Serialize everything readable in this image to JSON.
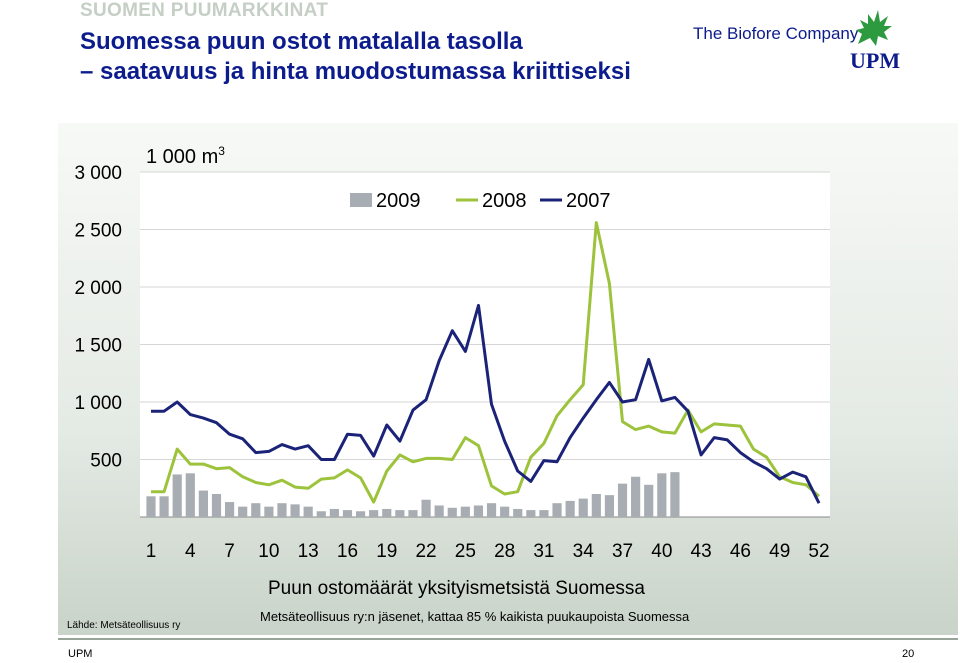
{
  "header": {
    "kicker": "SUOMEN PUUMARKKINAT",
    "title_line1": "Suomessa puun ostot matalalla tasolla",
    "title_line2": "– saatavuus ja hinta muodostumassa kriittiseksi",
    "tagline": "The Biofore Company",
    "brand": "UPM"
  },
  "chart_data": {
    "type": "bar",
    "title": "Puun ostomäärät yksityismetsistä Suomessa",
    "subtitle": "Metsäteollisuus ry:n jäsenet, kattaa 85 % kaikista puukaupoista Suomessa",
    "unit_label": "1 000 m",
    "unit_superscript": "3",
    "ylim": [
      0,
      3000
    ],
    "yticks": [
      500,
      1000,
      1500,
      2000,
      2500,
      3000
    ],
    "ytick_labels": [
      "500",
      "1 000",
      "1 500",
      "2 000",
      "2 500",
      "3 000"
    ],
    "xlim": [
      1,
      52
    ],
    "xticks": [
      1,
      4,
      7,
      10,
      13,
      16,
      19,
      22,
      25,
      28,
      31,
      34,
      37,
      40,
      43,
      46,
      49,
      52
    ],
    "xtick_labels": [
      "1",
      "4",
      "7",
      "10",
      "13",
      "16",
      "19",
      "22",
      "25",
      "28",
      "31",
      "34",
      "37",
      "40",
      "43",
      "46",
      "49",
      "52"
    ],
    "legend": {
      "placement": "top-center"
    },
    "series": [
      {
        "name": "2009",
        "type": "bar",
        "color": "#a7adb2",
        "x": [
          1,
          2,
          3,
          4,
          5,
          6,
          7,
          8,
          9,
          10,
          11,
          12,
          13,
          14,
          15,
          16,
          17,
          18,
          19,
          20,
          21,
          22,
          23,
          24,
          25,
          26,
          27,
          28,
          29,
          30,
          31,
          32,
          33,
          34,
          35,
          36,
          37,
          38,
          39,
          40,
          41
        ],
        "values": [
          180,
          180,
          370,
          380,
          230,
          200,
          130,
          90,
          120,
          90,
          120,
          110,
          90,
          50,
          70,
          60,
          50,
          60,
          70,
          60,
          60,
          150,
          100,
          80,
          90,
          100,
          120,
          90,
          70,
          60,
          60,
          120,
          140,
          160,
          200,
          190,
          290,
          350,
          280,
          380,
          390
        ]
      },
      {
        "name": "2008",
        "type": "line",
        "color": "#9cc33b",
        "x": [
          1,
          2,
          3,
          4,
          5,
          6,
          7,
          8,
          9,
          10,
          11,
          12,
          13,
          14,
          15,
          16,
          17,
          18,
          19,
          20,
          21,
          22,
          23,
          24,
          25,
          26,
          27,
          28,
          29,
          30,
          31,
          32,
          33,
          34,
          35,
          36,
          37,
          38,
          39,
          40,
          41,
          42,
          43,
          44,
          45,
          46,
          47,
          48,
          49,
          50,
          51,
          52
        ],
        "values": [
          220,
          220,
          590,
          460,
          460,
          420,
          430,
          350,
          300,
          280,
          320,
          260,
          250,
          330,
          340,
          410,
          340,
          130,
          400,
          540,
          480,
          510,
          510,
          500,
          690,
          620,
          270,
          200,
          220,
          520,
          640,
          880,
          1020,
          1150,
          2560,
          2030,
          830,
          760,
          790,
          740,
          730,
          930,
          740,
          810,
          800,
          790,
          590,
          520,
          350,
          300,
          280,
          180
        ]
      },
      {
        "name": "2007",
        "type": "line",
        "color": "#1b2379",
        "x": [
          1,
          2,
          3,
          4,
          5,
          6,
          7,
          8,
          9,
          10,
          11,
          12,
          13,
          14,
          15,
          16,
          17,
          18,
          19,
          20,
          21,
          22,
          23,
          24,
          25,
          26,
          27,
          28,
          29,
          30,
          31,
          32,
          33,
          34,
          35,
          36,
          37,
          38,
          39,
          40,
          41,
          42,
          43,
          44,
          45,
          46,
          47,
          48,
          49,
          50,
          51,
          52
        ],
        "values": [
          920,
          920,
          1000,
          890,
          860,
          820,
          720,
          680,
          560,
          570,
          630,
          590,
          620,
          500,
          500,
          720,
          710,
          530,
          800,
          660,
          930,
          1020,
          1360,
          1620,
          1440,
          1840,
          980,
          660,
          400,
          310,
          490,
          480,
          690,
          860,
          1020,
          1170,
          1000,
          1020,
          1370,
          1010,
          1040,
          920,
          540,
          690,
          670,
          560,
          480,
          420,
          330,
          390,
          350,
          120
        ]
      }
    ]
  },
  "footer": {
    "source": "Lähde: Metsäteollisuus ry",
    "left": "UPM",
    "page": "20"
  }
}
